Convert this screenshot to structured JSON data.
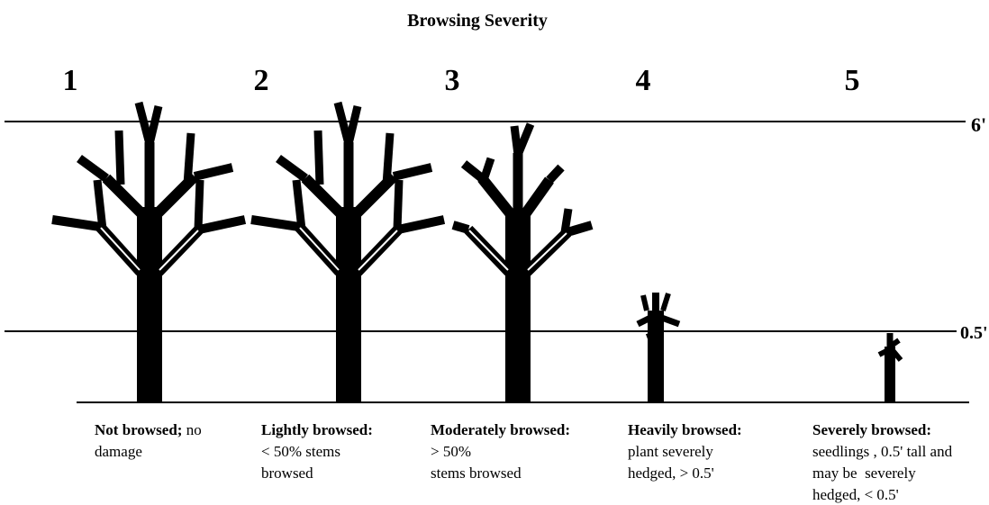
{
  "title": "Browsing Severity",
  "levels": [
    {
      "number": "1",
      "term": "Not browsed;",
      "rest": "no",
      "lines": [
        "damage"
      ]
    },
    {
      "number": "2",
      "term": "Lightly browsed:",
      "lines": [
        "< 50% stems",
        "browsed"
      ]
    },
    {
      "number": "3",
      "term": "Moderately browsed:",
      "lines": [
        "> 50%",
        "stems browsed"
      ]
    },
    {
      "number": "4",
      "term": "Heavily browsed:",
      "lines": [
        "plant severely",
        "hedged, > 0.5'"
      ]
    },
    {
      "number": "5",
      "term": "Severely browsed:",
      "lines": [
        "seedlings , 0.5' tall and",
        "may be  severely",
        "hedged, < 0.5'"
      ]
    }
  ],
  "height_labels": [
    "6'",
    "0.5'"
  ]
}
